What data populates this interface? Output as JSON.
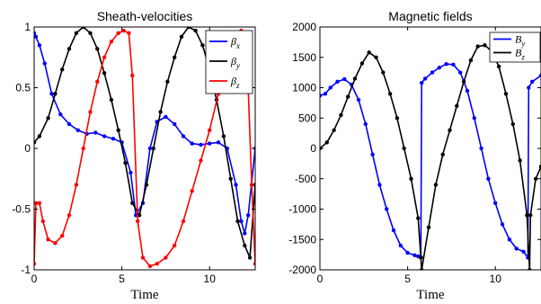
{
  "chart_data": [
    {
      "type": "line",
      "title": "Sheath-velocities",
      "xlabel": "Time",
      "ylabel": "",
      "xlim": [
        0,
        12.6
      ],
      "ylim": [
        -1,
        1
      ],
      "xticks": [
        "0",
        "5",
        "10"
      ],
      "yticks": [
        "-1",
        "-0.5",
        "0",
        "0.5",
        "1"
      ],
      "xtick_values": [
        0,
        5,
        10
      ],
      "ytick_values": [
        -1,
        -0.5,
        0,
        0.5,
        1
      ],
      "grid": false,
      "legend_position": "top-right",
      "series": [
        {
          "name": "β",
          "subscript": "x",
          "color": "#0000ff",
          "x": [
            0,
            0.1,
            0.3,
            0.6,
            1.0,
            1.5,
            2.0,
            2.5,
            3.0,
            3.5,
            4.0,
            4.5,
            5.0,
            5.5,
            5.8,
            6.2,
            6.6,
            7.0,
            7.5,
            8.0,
            8.5,
            9.0,
            9.5,
            10.0,
            10.5,
            11.0,
            11.5,
            11.8,
            12.0,
            12.2,
            12.6
          ],
          "y": [
            0.95,
            0.92,
            0.85,
            0.7,
            0.45,
            0.28,
            0.2,
            0.15,
            0.12,
            0.13,
            0.1,
            0.08,
            0.05,
            -0.2,
            -0.55,
            -0.45,
            0.0,
            0.22,
            0.26,
            0.2,
            0.1,
            0.04,
            0.03,
            0.04,
            0.05,
            0.0,
            -0.3,
            -0.6,
            -0.7,
            -0.55,
            0.0
          ]
        },
        {
          "name": "β",
          "subscript": "y",
          "color": "#000000",
          "x": [
            0,
            0.3,
            0.8,
            1.2,
            1.6,
            2.0,
            2.4,
            2.8,
            3.2,
            3.6,
            4.0,
            4.4,
            4.8,
            5.2,
            5.6,
            6.0,
            6.4,
            6.8,
            7.2,
            7.6,
            8.0,
            8.4,
            8.8,
            9.2,
            9.6,
            10.0,
            10.4,
            10.8,
            11.2,
            11.6,
            12.0,
            12.3,
            12.6
          ],
          "y": [
            0.05,
            0.1,
            0.25,
            0.45,
            0.65,
            0.82,
            0.95,
            1.0,
            0.95,
            0.82,
            0.62,
            0.4,
            0.15,
            -0.12,
            -0.45,
            -0.55,
            -0.3,
            0.0,
            0.3,
            0.55,
            0.75,
            0.92,
            1.0,
            0.97,
            0.85,
            0.65,
            0.4,
            0.1,
            -0.25,
            -0.6,
            -0.8,
            -0.9,
            -0.3
          ]
        },
        {
          "name": "β",
          "subscript": "z",
          "color": "#ff0000",
          "x": [
            0,
            0.1,
            0.3,
            0.5,
            0.8,
            1.2,
            1.6,
            2.0,
            2.4,
            2.8,
            3.2,
            3.6,
            4.0,
            4.4,
            4.8,
            5.1,
            5.4,
            5.6,
            5.9,
            6.2,
            6.6,
            7.0,
            7.5,
            8.0,
            8.5,
            9.0,
            9.5,
            10.0,
            10.5,
            11.0,
            11.4,
            11.8,
            12.1,
            12.4,
            12.6
          ],
          "y": [
            -0.95,
            -0.45,
            -0.45,
            -0.6,
            -0.75,
            -0.78,
            -0.72,
            -0.55,
            -0.3,
            0.0,
            0.3,
            0.55,
            0.75,
            0.88,
            0.95,
            0.97,
            0.95,
            0.6,
            -0.6,
            -0.9,
            -0.97,
            -0.95,
            -0.9,
            -0.8,
            -0.6,
            -0.35,
            -0.1,
            0.15,
            0.45,
            0.7,
            0.88,
            0.97,
            0.9,
            -0.3,
            -0.95
          ]
        }
      ]
    },
    {
      "type": "line",
      "title": "Magnetic fields",
      "xlabel": "Time",
      "ylabel": "",
      "xlim": [
        0,
        12.6
      ],
      "ylim": [
        -2000,
        2000
      ],
      "xticks": [
        "0",
        "5",
        "10"
      ],
      "yticks": [
        "-2000",
        "-1500",
        "-1000",
        "-500",
        "0",
        "500",
        "1000",
        "1500",
        "2000"
      ],
      "xtick_values": [
        0,
        5,
        10
      ],
      "ytick_values": [
        -2000,
        -1500,
        -1000,
        -500,
        0,
        500,
        1000,
        1500,
        2000
      ],
      "grid": false,
      "legend_position": "top-right",
      "series": [
        {
          "name": "B",
          "subscript": "y",
          "color": "#0000ff",
          "x": [
            0,
            0.3,
            0.6,
            1.0,
            1.4,
            1.8,
            2.2,
            2.6,
            3.0,
            3.4,
            3.8,
            4.2,
            4.6,
            5.0,
            5.4,
            5.6,
            5.75,
            5.8,
            6.0,
            6.4,
            6.8,
            7.2,
            7.6,
            8.0,
            8.4,
            8.8,
            9.2,
            9.6,
            10.0,
            10.4,
            10.8,
            11.2,
            11.6,
            11.85,
            11.9,
            12.1,
            12.6
          ],
          "y": [
            870,
            900,
            1000,
            1100,
            1140,
            1050,
            800,
            400,
            -100,
            -600,
            -1000,
            -1350,
            -1600,
            -1720,
            -1760,
            -1780,
            -1790,
            1080,
            1150,
            1250,
            1330,
            1390,
            1380,
            1250,
            950,
            500,
            0,
            -500,
            -900,
            -1250,
            -1500,
            -1650,
            -1700,
            -1800,
            1000,
            1100,
            1200
          ]
        },
        {
          "name": "B",
          "subscript": "z",
          "color": "#000000",
          "x": [
            0,
            0.4,
            0.8,
            1.2,
            1.6,
            2.0,
            2.4,
            2.8,
            3.2,
            3.6,
            4.0,
            4.4,
            4.8,
            5.2,
            5.6,
            5.75,
            5.8,
            6.2,
            6.6,
            7.0,
            7.4,
            7.8,
            8.2,
            8.6,
            9.0,
            9.4,
            9.8,
            10.2,
            10.6,
            11.0,
            11.4,
            11.8,
            11.95,
            12.0,
            12.3,
            12.6
          ],
          "y": [
            0,
            100,
            300,
            550,
            850,
            1150,
            1400,
            1580,
            1500,
            1250,
            900,
            500,
            0,
            -500,
            -1150,
            -1800,
            -2000,
            -1300,
            -600,
            -100,
            300,
            700,
            1100,
            1450,
            1680,
            1700,
            1600,
            1350,
            900,
            400,
            -200,
            -1100,
            -2000,
            -1100,
            -500,
            -300
          ]
        }
      ]
    }
  ]
}
